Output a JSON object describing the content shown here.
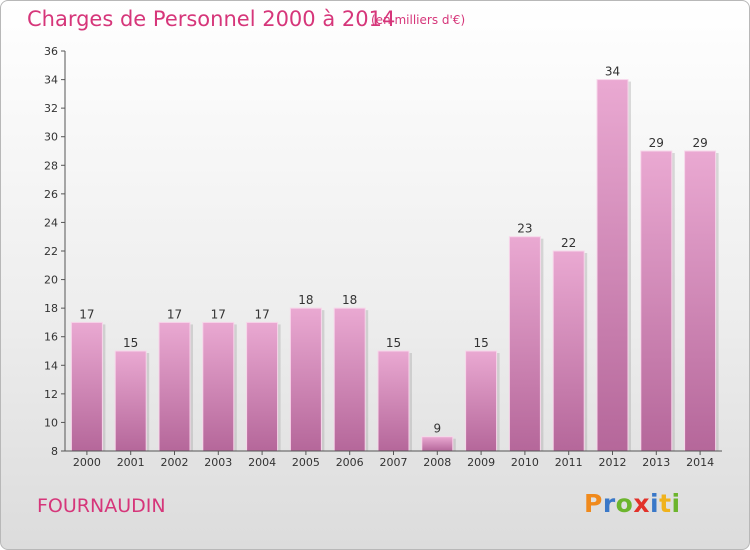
{
  "header": {
    "title": "Charges de Personnel 2000 à 2014",
    "subtitle": "(en milliers d'€)"
  },
  "footer": {
    "commune": "FOURNAUDIN",
    "logo_text": "Proxiti"
  },
  "colors": {
    "accent": "#d6367a",
    "bar_light": "#eaa9d2",
    "bar_dark": "#b5679a"
  },
  "chart_data": {
    "type": "bar",
    "title": "Charges de Personnel 2000 à 2014",
    "subtitle": "(en milliers d'€)",
    "categories": [
      "2000",
      "2001",
      "2002",
      "2003",
      "2004",
      "2005",
      "2006",
      "2007",
      "2008",
      "2009",
      "2010",
      "2011",
      "2012",
      "2013",
      "2014"
    ],
    "values": [
      17,
      15,
      17,
      17,
      17,
      18,
      18,
      15,
      9,
      15,
      23,
      22,
      34,
      29,
      29
    ],
    "ylim": [
      8,
      36
    ],
    "yticks": [
      8,
      10,
      12,
      14,
      16,
      18,
      20,
      22,
      24,
      26,
      28,
      30,
      32,
      34,
      36
    ],
    "grid": false,
    "data_labels": true
  }
}
